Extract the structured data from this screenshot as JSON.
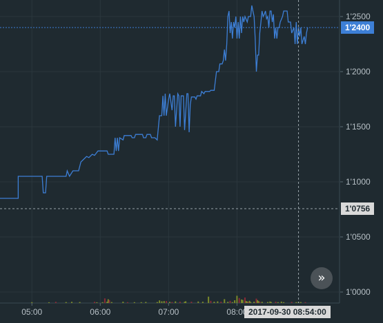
{
  "chart_data": {
    "type": "line",
    "y_ticks": [
      "1'0000",
      "1'0500",
      "1'1000",
      "1'1500",
      "1'2000",
      "1'2500"
    ],
    "y_tick_values": [
      1.0,
      1.05,
      1.1,
      1.15,
      1.2,
      1.25
    ],
    "ylim": [
      0.99,
      1.265
    ],
    "x_ticks": [
      "05:00",
      "06:00",
      "07:00",
      "08:00"
    ],
    "x_tick_minutes": [
      300,
      360,
      420,
      480
    ],
    "xlim_minutes": [
      272,
      570
    ],
    "grid": true,
    "series": [
      {
        "kind": "price",
        "color": "#3d7fd6",
        "points": [
          [
            272,
            1.085
          ],
          [
            282,
            1.085
          ],
          [
            288,
            1.085
          ],
          [
            288,
            1.105
          ],
          [
            309,
            1.105
          ],
          [
            310,
            1.09
          ],
          [
            312,
            1.09
          ],
          [
            313,
            1.105
          ],
          [
            330,
            1.105
          ],
          [
            331,
            1.11
          ],
          [
            333,
            1.105
          ],
          [
            336,
            1.11
          ],
          [
            341,
            1.11
          ],
          [
            343,
            1.118
          ],
          [
            345,
            1.12
          ],
          [
            348,
            1.123
          ],
          [
            350,
            1.122
          ],
          [
            353,
            1.125
          ],
          [
            355,
            1.124
          ],
          [
            358,
            1.128
          ],
          [
            366,
            1.128
          ],
          [
            367,
            1.125
          ],
          [
            372,
            1.125
          ],
          [
            373,
            1.14
          ],
          [
            374,
            1.128
          ],
          [
            375,
            1.14
          ],
          [
            376,
            1.128
          ],
          [
            377,
            1.14
          ],
          [
            380,
            1.138
          ],
          [
            381,
            1.142
          ],
          [
            387,
            1.142
          ],
          [
            388,
            1.14
          ],
          [
            390,
            1.14
          ],
          [
            391,
            1.143
          ],
          [
            397,
            1.143
          ],
          [
            398,
            1.14
          ],
          [
            400,
            1.14
          ],
          [
            401,
            1.143
          ],
          [
            404,
            1.143
          ],
          [
            405,
            1.14
          ],
          [
            408,
            1.14
          ],
          [
            410,
            1.138
          ],
          [
            412,
            1.16
          ],
          [
            414,
            1.16
          ],
          [
            415,
            1.178
          ],
          [
            416,
            1.16
          ],
          [
            417,
            1.18
          ],
          [
            418,
            1.16
          ],
          [
            420,
            1.175
          ],
          [
            421,
            1.18
          ],
          [
            423,
            1.165
          ],
          [
            424,
            1.178
          ],
          [
            425,
            1.178
          ],
          [
            426,
            1.15
          ],
          [
            428,
            1.18
          ],
          [
            429,
            1.178
          ],
          [
            430,
            1.15
          ],
          [
            431,
            1.178
          ],
          [
            433,
            1.178
          ],
          [
            434,
            1.147
          ],
          [
            436,
            1.18
          ],
          [
            437,
            1.18
          ],
          [
            438,
            1.145
          ],
          [
            439,
            1.17
          ],
          [
            440,
            1.177
          ],
          [
            443,
            1.177
          ],
          [
            444,
            1.175
          ],
          [
            445,
            1.178
          ],
          [
            448,
            1.178
          ],
          [
            449,
            1.182
          ],
          [
            451,
            1.18
          ],
          [
            452,
            1.182
          ],
          [
            456,
            1.182
          ],
          [
            457,
            1.183
          ],
          [
            460,
            1.183
          ],
          [
            462,
            1.2
          ],
          [
            464,
            1.2
          ],
          [
            465,
            1.207
          ],
          [
            467,
            1.207
          ],
          [
            468,
            1.21
          ],
          [
            469,
            1.22
          ],
          [
            470,
            1.21
          ],
          [
            471,
            1.225
          ],
          [
            472,
            1.25
          ],
          [
            473,
            1.255
          ],
          [
            474,
            1.235
          ],
          [
            475,
            1.245
          ],
          [
            476,
            1.23
          ],
          [
            477,
            1.245
          ],
          [
            478,
            1.24
          ],
          [
            479,
            1.25
          ],
          [
            480,
            1.23
          ],
          [
            481,
            1.245
          ],
          [
            482,
            1.23
          ],
          [
            483,
            1.25
          ],
          [
            484,
            1.235
          ],
          [
            485,
            1.25
          ],
          [
            486,
            1.245
          ],
          [
            487,
            1.25
          ],
          [
            489,
            1.245
          ],
          [
            490,
            1.25
          ],
          [
            492,
            1.25
          ],
          [
            493,
            1.26
          ],
          [
            494,
            1.255
          ],
          [
            495,
            1.25
          ],
          [
            496,
            1.23
          ],
          [
            497,
            1.2
          ],
          [
            498,
            1.215
          ],
          [
            499,
            1.215
          ],
          [
            500,
            1.235
          ],
          [
            501,
            1.245
          ],
          [
            502,
            1.255
          ],
          [
            503,
            1.25
          ],
          [
            504,
            1.252
          ],
          [
            505,
            1.255
          ],
          [
            506,
            1.248
          ],
          [
            507,
            1.25
          ],
          [
            508,
            1.24
          ],
          [
            509,
            1.255
          ],
          [
            510,
            1.255
          ],
          [
            511,
            1.245
          ],
          [
            512,
            1.252
          ],
          [
            513,
            1.23
          ],
          [
            514,
            1.24
          ],
          [
            515,
            1.23
          ],
          [
            516,
            1.24
          ],
          [
            517,
            1.24
          ],
          [
            518,
            1.245
          ],
          [
            520,
            1.25
          ],
          [
            521,
            1.255
          ],
          [
            524,
            1.255
          ],
          [
            525,
            1.245
          ],
          [
            527,
            1.245
          ],
          [
            528,
            1.235
          ],
          [
            530,
            1.24
          ],
          [
            531,
            1.225
          ],
          [
            532,
            1.245
          ],
          [
            533,
            1.225
          ],
          [
            534,
            1.24
          ],
          [
            535,
            1.232
          ],
          [
            536,
            1.24
          ],
          [
            537,
            1.225
          ],
          [
            539,
            1.232
          ],
          [
            540,
            1.225
          ],
          [
            541,
            1.235
          ],
          [
            542,
            1.24
          ]
        ]
      },
      {
        "kind": "volume",
        "up_color": "#7a8a2a",
        "down_color": "#8a2a36",
        "bars": [
          [
            300,
            0.0008,
            0
          ],
          [
            315,
            0.0007,
            0
          ],
          [
            321,
            0.0011,
            1
          ],
          [
            330,
            0.0009,
            0
          ],
          [
            335,
            0.0011,
            0
          ],
          [
            342,
            0.0009,
            0
          ],
          [
            355,
            0.0011,
            1
          ],
          [
            357,
            0.0007,
            0
          ],
          [
            362,
            0.0008,
            0
          ],
          [
            364,
            0.0042,
            1
          ],
          [
            366,
            0.0012,
            0
          ],
          [
            367,
            0.0034,
            0
          ],
          [
            368,
            0.0026,
            1
          ],
          [
            370,
            0.0009,
            0
          ],
          [
            380,
            0.0012,
            0
          ],
          [
            384,
            0.0008,
            1
          ],
          [
            390,
            0.0008,
            0
          ],
          [
            396,
            0.0008,
            0
          ],
          [
            400,
            0.001,
            0
          ],
          [
            410,
            0.0009,
            0
          ],
          [
            412,
            0.0024,
            0
          ],
          [
            414,
            0.0016,
            0
          ],
          [
            416,
            0.0018,
            0
          ],
          [
            418,
            0.0018,
            1
          ],
          [
            421,
            0.0011,
            0
          ],
          [
            423,
            0.0009,
            1
          ],
          [
            426,
            0.0015,
            0
          ],
          [
            430,
            0.0012,
            1
          ],
          [
            434,
            0.0011,
            0
          ],
          [
            435,
            0.0016,
            0
          ],
          [
            440,
            0.0012,
            1
          ],
          [
            446,
            0.0014,
            0
          ],
          [
            450,
            0.0012,
            0
          ],
          [
            455,
            0.0058,
            0
          ],
          [
            457,
            0.002,
            1
          ],
          [
            460,
            0.0012,
            0
          ],
          [
            463,
            0.0015,
            0
          ],
          [
            466,
            0.0012,
            1
          ],
          [
            469,
            0.0035,
            0
          ],
          [
            472,
            0.0011,
            0
          ],
          [
            474,
            0.002,
            1
          ],
          [
            476,
            0.0008,
            0
          ],
          [
            478,
            0.0025,
            0
          ],
          [
            480,
            0.0066,
            0
          ],
          [
            482,
            0.0045,
            1
          ],
          [
            484,
            0.0032,
            0
          ],
          [
            485,
            0.0028,
            0
          ],
          [
            487,
            0.005,
            1
          ],
          [
            488,
            0.0018,
            0
          ],
          [
            489,
            0.0014,
            0
          ],
          [
            490,
            0.0012,
            1
          ],
          [
            491,
            0.002,
            0
          ],
          [
            492,
            0.0009,
            0
          ],
          [
            495,
            0.0012,
            0
          ],
          [
            497,
            0.004,
            1
          ],
          [
            498,
            0.0026,
            0
          ],
          [
            499,
            0.0017,
            0
          ],
          [
            500,
            0.0012,
            1
          ],
          [
            502,
            0.0011,
            0
          ],
          [
            507,
            0.0009,
            0
          ],
          [
            509,
            0.0014,
            0
          ],
          [
            510,
            0.0009,
            0
          ],
          [
            514,
            0.0012,
            1
          ],
          [
            516,
            0.0008,
            0
          ],
          [
            519,
            0.0013,
            0
          ],
          [
            521,
            0.0008,
            0
          ],
          [
            528,
            0.001,
            1
          ],
          [
            532,
            0.0008,
            0
          ],
          [
            534,
            0.0009,
            0
          ],
          [
            536,
            0.0009,
            0
          ],
          [
            540,
            0.0008,
            1
          ]
        ]
      }
    ],
    "last_price_label": "1'2400",
    "last_price_value": 1.24,
    "crosshair_price_label": "1'0756",
    "crosshair_price_value": 1.0756,
    "crosshair_time_label": "2017-09-30 08:54:00",
    "crosshair_time_minutes": 534
  },
  "controls": {
    "scroll_to_latest_icon": "»"
  }
}
